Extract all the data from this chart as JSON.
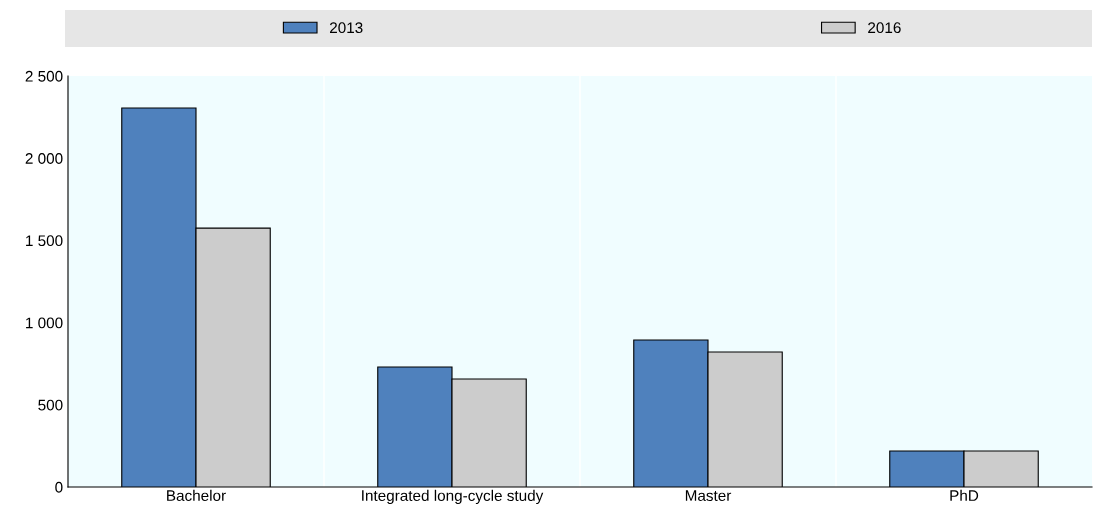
{
  "chart_data": {
    "type": "bar",
    "categories": [
      "Bachelor",
      "Integrated long-cycle study",
      "Master",
      "PhD"
    ],
    "series": [
      {
        "name": "2013",
        "color": "#4f81bd",
        "values": [
          2305,
          730,
          894,
          219
        ]
      },
      {
        "name": "2016",
        "color": "#cccccc",
        "values": [
          1575,
          657,
          821,
          219
        ]
      }
    ],
    "ylim": [
      0,
      2500
    ],
    "yticks": [
      0,
      500,
      {
        "value": 1000,
        "label": "1 000"
      },
      {
        "value": 1500,
        "label": "1 500"
      },
      {
        "value": 2000,
        "label": "2 000"
      },
      {
        "value": 2500,
        "label": "2 500"
      }
    ],
    "legend": "top",
    "grid": false
  }
}
